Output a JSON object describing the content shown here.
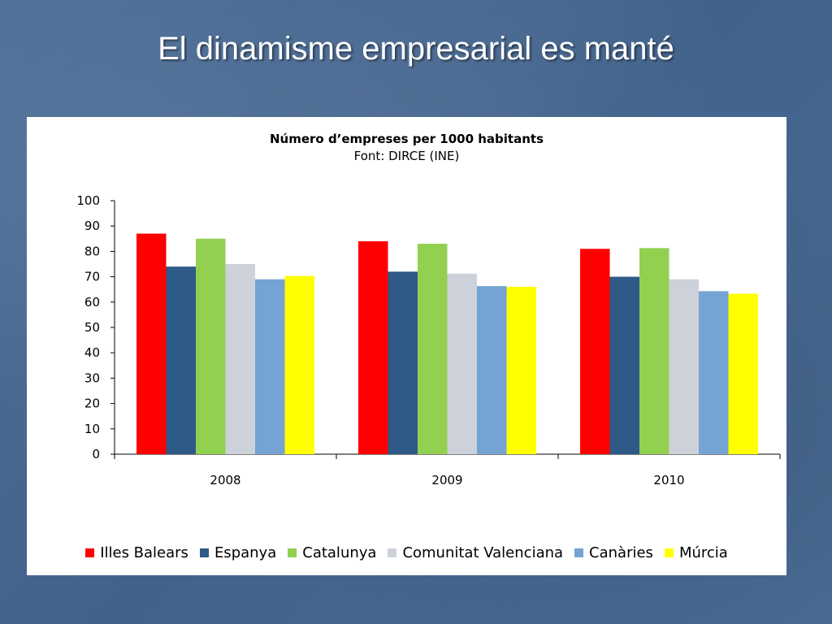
{
  "slide": {
    "title": "El dinamisme empresarial es manté"
  },
  "chart_data": {
    "type": "bar",
    "title": "Número d’empreses per 1000 habitants",
    "subtitle": "Font: DIRCE (INE)",
    "categories": [
      "2008",
      "2009",
      "2010"
    ],
    "ylim": [
      0,
      100
    ],
    "yticks": [
      0,
      10,
      20,
      30,
      40,
      50,
      60,
      70,
      80,
      90,
      100
    ],
    "grid": false,
    "legend_position": "bottom",
    "series": [
      {
        "name": "Illes Balears",
        "color": "#ff0000",
        "values": [
          87,
          84,
          81
        ]
      },
      {
        "name": "Espanya",
        "color": "#2e5a88",
        "values": [
          74,
          72,
          70
        ]
      },
      {
        "name": "Catalunya",
        "color": "#92d050",
        "values": [
          85,
          83,
          81.3
        ]
      },
      {
        "name": "Comunitat Valenciana",
        "color": "#cdd2da",
        "values": [
          75,
          71.2,
          69
        ]
      },
      {
        "name": "Canàries",
        "color": "#75a3d3",
        "values": [
          69,
          66.3,
          64.3
        ]
      },
      {
        "name": "Múrcia",
        "color": "#ffff00",
        "values": [
          70.3,
          66,
          63.3
        ]
      }
    ]
  }
}
